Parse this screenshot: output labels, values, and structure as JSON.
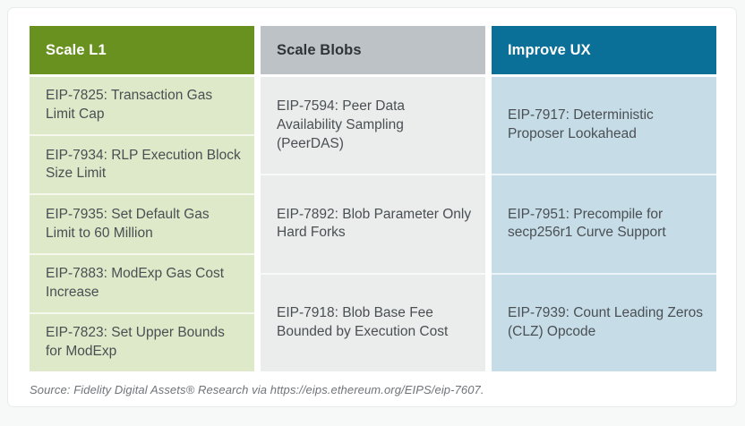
{
  "chart_data": {
    "type": "table",
    "columns": [
      {
        "id": "scale-l1",
        "header": "Scale L1",
        "header_bg": "#69911f",
        "header_color": "#ffffff",
        "cell_bg": "#dde9c8",
        "items": [
          "EIP-7825: Transaction Gas Limit Cap",
          "EIP-7934: RLP Execution Block Size Limit",
          "EIP-7935: Set Default Gas Limit to 60 Million",
          "EIP-7883: ModExp Gas Cost Increase",
          "EIP-7823: Set Upper Bounds for ModExp"
        ]
      },
      {
        "id": "scale-blobs",
        "header": "Scale Blobs",
        "header_bg": "#bdc2c7",
        "header_color": "#2f343a",
        "cell_bg": "#ebedec",
        "items": [
          "EIP-7594: Peer Data Availability Sampling (PeerDAS)",
          "EIP-7892: Blob Parameter Only Hard Forks",
          "EIP-7918: Blob Base Fee Bounded by Execution Cost"
        ]
      },
      {
        "id": "improve-ux",
        "header": "Improve UX",
        "header_bg": "#0b7098",
        "header_color": "#ffffff",
        "cell_bg": "#c6dde8",
        "items": [
          "EIP-7917: Deterministic Proposer Lookahead",
          "EIP-7951: Precompile for secp256r1 Curve Support",
          "EIP-7939: Count Leading Zeros (CLZ) Opcode"
        ]
      }
    ],
    "source_note": "Source: Fidelity Digital Assets® Research via https://eips.ethereum.org/EIPS/eip-7607."
  }
}
